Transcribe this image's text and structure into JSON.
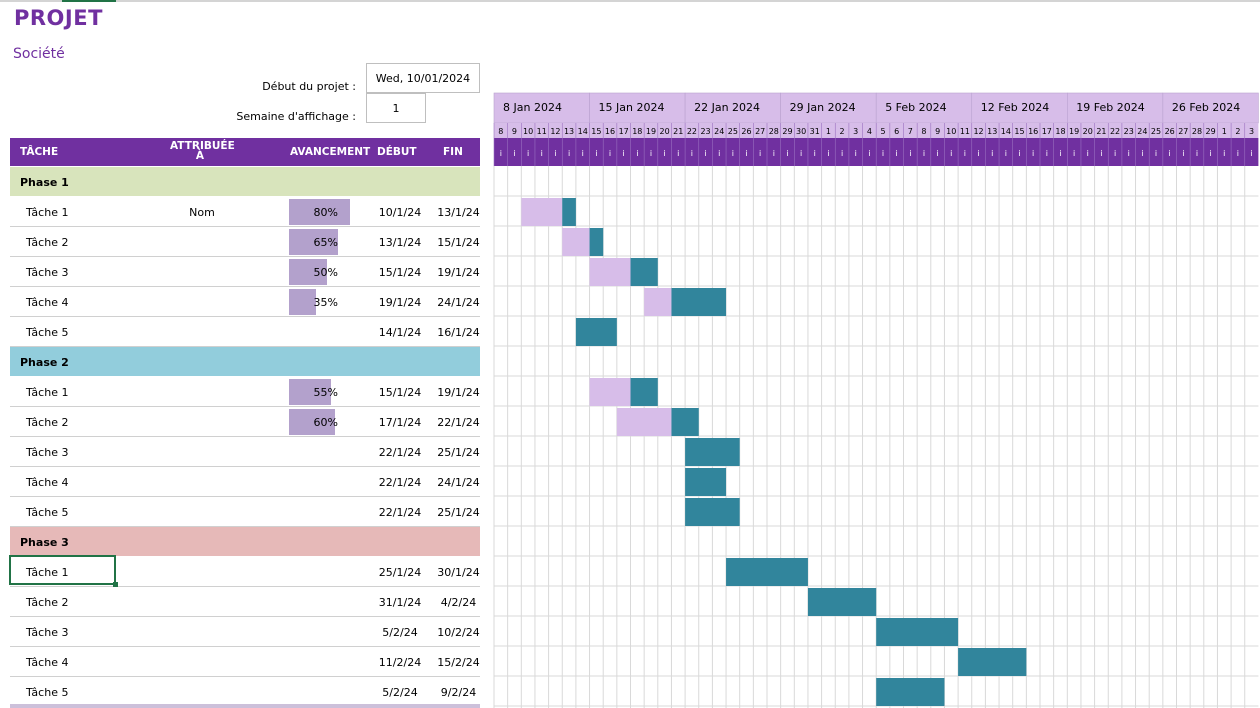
{
  "header": {
    "title": "PROJET",
    "company": "Société",
    "start_label": "Début du projet :",
    "start_value": "Wed, 10/01/2024",
    "week_label": "Semaine d'affichage :",
    "week_value": "1"
  },
  "columns": {
    "task": "TÂCHE",
    "assigned_line1": "ATTRIBUÉE",
    "assigned_line2": "À",
    "progress": "AVANCEMENT",
    "start": "DÉBUT",
    "end": "FIN"
  },
  "timeline": {
    "weeks": [
      "8 Jan 2024",
      "15 Jan 2024",
      "22 Jan 2024",
      "29 Jan 2024",
      "5 Feb 2024",
      "12 Feb 2024",
      "19 Feb 2024",
      "26 Feb 2024"
    ],
    "days": [
      8,
      9,
      10,
      11,
      12,
      13,
      14,
      15,
      16,
      17,
      18,
      19,
      20,
      21,
      22,
      23,
      24,
      25,
      26,
      27,
      28,
      29,
      30,
      31,
      1,
      2,
      3,
      4,
      5,
      6,
      7,
      8,
      9,
      10,
      11,
      12,
      13,
      14,
      15,
      16,
      17,
      18,
      19,
      20,
      21,
      22,
      23,
      24,
      25,
      26,
      27,
      28,
      29,
      1,
      2,
      3
    ],
    "weekday_letter": "i"
  },
  "colors": {
    "purple": "#7030a0",
    "gridline": "#d9d9d9",
    "bar_done": "#d7bde9",
    "bar_remaining": "#31859c",
    "progress_fill": "#b3a1cc",
    "phase1": "#d8e4bc",
    "phase2": "#92cddc",
    "phase3": "#e6b9b8",
    "phase4": "#ccc0da",
    "week_header": "#d7bde9"
  },
  "rows": [
    {
      "type": "phase",
      "name": "Phase 1",
      "color": "#d8e4bc"
    },
    {
      "type": "task",
      "name": "Tâche 1",
      "assigned": "Nom",
      "progress": "80%",
      "progress_value": 0.8,
      "start": "10/1/24",
      "end": "13/1/24",
      "start_day": 2,
      "duration": 4
    },
    {
      "type": "task",
      "name": "Tâche 2",
      "assigned": "",
      "progress": "65%",
      "progress_value": 0.65,
      "start": "13/1/24",
      "end": "15/1/24",
      "start_day": 5,
      "duration": 3
    },
    {
      "type": "task",
      "name": "Tâche 3",
      "assigned": "",
      "progress": "50%",
      "progress_value": 0.5,
      "start": "15/1/24",
      "end": "19/1/24",
      "start_day": 7,
      "duration": 5
    },
    {
      "type": "task",
      "name": "Tâche 4",
      "assigned": "",
      "progress": "35%",
      "progress_value": 0.35,
      "start": "19/1/24",
      "end": "24/1/24",
      "start_day": 11,
      "duration": 6
    },
    {
      "type": "task",
      "name": "Tâche 5",
      "assigned": "",
      "progress": "",
      "progress_value": 0,
      "start": "14/1/24",
      "end": "16/1/24",
      "start_day": 6,
      "duration": 3
    },
    {
      "type": "phase",
      "name": "Phase 2",
      "color": "#92cddc"
    },
    {
      "type": "task",
      "name": "Tâche 1",
      "assigned": "",
      "progress": "55%",
      "progress_value": 0.55,
      "start": "15/1/24",
      "end": "19/1/24",
      "start_day": 7,
      "duration": 5
    },
    {
      "type": "task",
      "name": "Tâche 2",
      "assigned": "",
      "progress": "60%",
      "progress_value": 0.6,
      "start": "17/1/24",
      "end": "22/1/24",
      "start_day": 9,
      "duration": 6
    },
    {
      "type": "task",
      "name": "Tâche 3",
      "assigned": "",
      "progress": "",
      "progress_value": 0,
      "start": "22/1/24",
      "end": "25/1/24",
      "start_day": 14,
      "duration": 4
    },
    {
      "type": "task",
      "name": "Tâche 4",
      "assigned": "",
      "progress": "",
      "progress_value": 0,
      "start": "22/1/24",
      "end": "24/1/24",
      "start_day": 14,
      "duration": 3
    },
    {
      "type": "task",
      "name": "Tâche 5",
      "assigned": "",
      "progress": "",
      "progress_value": 0,
      "start": "22/1/24",
      "end": "25/1/24",
      "start_day": 14,
      "duration": 4
    },
    {
      "type": "phase",
      "name": "Phase 3",
      "color": "#e6b9b8"
    },
    {
      "type": "task",
      "name": "Tâche 1",
      "assigned": "",
      "progress": "",
      "progress_value": 0,
      "start": "25/1/24",
      "end": "30/1/24",
      "start_day": 17,
      "duration": 6
    },
    {
      "type": "task",
      "name": "Tâche 2",
      "assigned": "",
      "progress": "",
      "progress_value": 0,
      "start": "31/1/24",
      "end": "4/2/24",
      "start_day": 23,
      "duration": 5
    },
    {
      "type": "task",
      "name": "Tâche 3",
      "assigned": "",
      "progress": "",
      "progress_value": 0,
      "start": "5/2/24",
      "end": "10/2/24",
      "start_day": 28,
      "duration": 6
    },
    {
      "type": "task",
      "name": "Tâche 4",
      "assigned": "",
      "progress": "",
      "progress_value": 0,
      "start": "11/2/24",
      "end": "15/2/24",
      "start_day": 34,
      "duration": 5
    },
    {
      "type": "task",
      "name": "Tâche 5",
      "assigned": "",
      "progress": "",
      "progress_value": 0,
      "start": "5/2/24",
      "end": "9/2/24",
      "start_day": 28,
      "duration": 5
    }
  ]
}
